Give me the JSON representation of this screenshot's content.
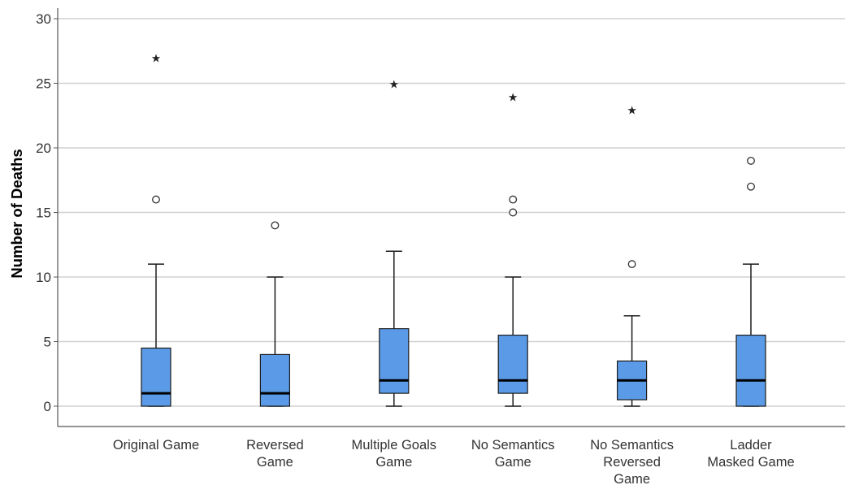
{
  "chart_data": {
    "type": "box",
    "title": "",
    "xlabel": "",
    "ylabel": "Number of Deaths",
    "ylim": [
      0,
      30
    ],
    "yticks": [
      0,
      5,
      10,
      15,
      20,
      25,
      30
    ],
    "grid": "horizontal",
    "legend": "none",
    "colors": {
      "box_fill": "#5b9ae6",
      "box_stroke": "#1c1c1c",
      "median": "#000000",
      "grid": "#d0d0d0",
      "axis": "#555555"
    },
    "categories": [
      {
        "label_lines": [
          "Original Game"
        ],
        "min": 0,
        "q1": 0,
        "median": 1,
        "q3": 4.5,
        "max": 11,
        "outliers": [
          16
        ],
        "extremes": [
          27
        ]
      },
      {
        "label_lines": [
          "Reversed",
          "Game"
        ],
        "min": 0,
        "q1": 0,
        "median": 1,
        "q3": 4,
        "max": 10,
        "outliers": [
          14
        ],
        "extremes": []
      },
      {
        "label_lines": [
          "Multiple Goals",
          "Game"
        ],
        "min": 0,
        "q1": 1,
        "median": 2,
        "q3": 6,
        "max": 12,
        "outliers": [],
        "extremes": [
          25
        ]
      },
      {
        "label_lines": [
          "No Semantics",
          "Game"
        ],
        "min": 0,
        "q1": 1,
        "median": 2,
        "q3": 5.5,
        "max": 10,
        "outliers": [
          15,
          16
        ],
        "extremes": [
          24
        ]
      },
      {
        "label_lines": [
          "No Semantics",
          "Reversed",
          "Game"
        ],
        "min": 0,
        "q1": 0.5,
        "median": 2,
        "q3": 3.5,
        "max": 7,
        "outliers": [
          11
        ],
        "extremes": [
          23
        ]
      },
      {
        "label_lines": [
          "Ladder",
          "Masked Game"
        ],
        "min": 0,
        "q1": 0,
        "median": 2,
        "q3": 5.5,
        "max": 11,
        "outliers": [
          17,
          19
        ],
        "extremes": []
      }
    ]
  }
}
